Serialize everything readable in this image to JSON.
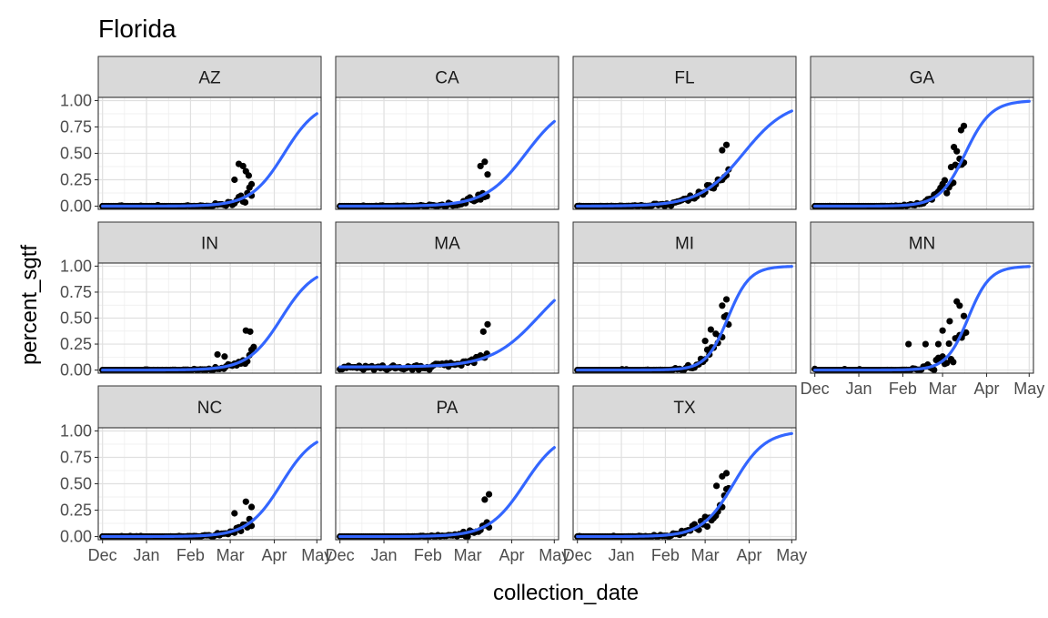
{
  "chart_data": {
    "type": "scatter",
    "title": "Florida",
    "xlabel": "collection_date",
    "ylabel": "percent_sgtf",
    "facet_var": "state",
    "ncol": 4,
    "x_ticks": [
      {
        "label": "Dec",
        "date": "2020-12-01"
      },
      {
        "label": "Jan",
        "date": "2021-01-01"
      },
      {
        "label": "Feb",
        "date": "2021-02-01"
      },
      {
        "label": "Mar",
        "date": "2021-03-01"
      },
      {
        "label": "Apr",
        "date": "2021-04-01"
      },
      {
        "label": "May",
        "date": "2021-05-01"
      }
    ],
    "xlim": [
      "2020-11-28",
      "2021-05-04"
    ],
    "ylim": [
      -0.03,
      1.03
    ],
    "y_ticks": [
      0,
      0.25,
      0.5,
      0.75,
      1
    ],
    "y_tick_labels": [
      "0.00",
      "0.25",
      "0.50",
      "0.75",
      "1.00"
    ],
    "grid": true,
    "point_color": "#000000",
    "fit_color": "#3366FF",
    "strip_fill": "#D9D9D9",
    "panels": [
      {
        "label": "AZ",
        "fit": {
          "midpoint": "2021-04-08",
          "rate": 0.085,
          "floor": 0
        },
        "points": {
          "start": "2020-12-01",
          "end": "2021-03-16",
          "seed": 1,
          "noise": 0.12,
          "extras": [
            [
              "2021-03-07",
              0.4
            ],
            [
              "2021-03-10",
              0.38
            ],
            [
              "2021-03-12",
              0.33
            ],
            [
              "2021-03-14",
              0.29
            ],
            [
              "2021-03-04",
              0.25
            ],
            [
              "2021-03-16",
              0.1
            ]
          ]
        }
      },
      {
        "label": "CA",
        "fit": {
          "midpoint": "2021-04-11",
          "rate": 0.07,
          "floor": 0
        },
        "points": {
          "start": "2020-12-01",
          "end": "2021-03-15",
          "seed": 2,
          "noise": 0.06,
          "extras": [
            [
              "2021-03-13",
              0.42
            ],
            [
              "2021-03-10",
              0.38
            ],
            [
              "2021-03-15",
              0.3
            ]
          ]
        }
      },
      {
        "label": "FL",
        "fit": {
          "midpoint": "2021-03-28",
          "rate": 0.065,
          "floor": 0
        },
        "points": {
          "start": "2020-12-01",
          "end": "2021-03-18",
          "seed": 3,
          "noise": 0.04,
          "extras": [
            [
              "2021-03-16",
              0.58
            ],
            [
              "2021-03-13",
              0.53
            ]
          ]
        }
      },
      {
        "label": "GA",
        "fit": {
          "midpoint": "2021-03-17",
          "rate": 0.11,
          "floor": 0
        },
        "points": {
          "start": "2020-12-01",
          "end": "2021-03-16",
          "seed": 4,
          "noise": 0.08,
          "extras": [
            [
              "2021-03-16",
              0.76
            ],
            [
              "2021-03-14",
              0.72
            ],
            [
              "2021-03-09",
              0.56
            ],
            [
              "2021-03-11",
              0.52
            ],
            [
              "2021-03-07",
              0.37
            ]
          ]
        }
      },
      {
        "label": "IN",
        "fit": {
          "midpoint": "2021-04-06",
          "rate": 0.085,
          "floor": 0
        },
        "points": {
          "start": "2020-12-01",
          "end": "2021-03-18",
          "seed": 5,
          "noise": 0.07,
          "extras": [
            [
              "2021-03-12",
              0.38
            ],
            [
              "2021-03-15",
              0.37
            ],
            [
              "2021-02-20",
              0.15
            ],
            [
              "2021-02-25",
              0.13
            ]
          ]
        }
      },
      {
        "label": "MA",
        "fit": {
          "midpoint": "2021-04-20",
          "rate": 0.06,
          "floor": 0.03
        },
        "points": {
          "start": "2020-12-01",
          "end": "2021-03-15",
          "seed": 6,
          "noise": 0.05,
          "extras": [
            [
              "2021-03-15",
              0.44
            ],
            [
              "2021-03-12",
              0.37
            ]
          ]
        }
      },
      {
        "label": "MI",
        "fit": {
          "midpoint": "2021-03-17",
          "rate": 0.13,
          "floor": 0
        },
        "points": {
          "start": "2020-12-01",
          "end": "2021-03-18",
          "seed": 7,
          "noise": 0.1,
          "extras": [
            [
              "2021-03-16",
              0.68
            ],
            [
              "2021-03-13",
              0.62
            ],
            [
              "2021-03-05",
              0.39
            ],
            [
              "2021-03-01",
              0.28
            ]
          ]
        }
      },
      {
        "label": "MN",
        "fit": {
          "midpoint": "2021-03-19",
          "rate": 0.13,
          "floor": 0
        },
        "points": {
          "start": "2020-12-01",
          "end": "2021-03-18",
          "seed": 8,
          "noise": 0.13,
          "extras": [
            [
              "2021-02-05",
              0.25
            ],
            [
              "2021-02-17",
              0.25
            ],
            [
              "2021-02-26",
              0.25
            ],
            [
              "2021-03-11",
              0.66
            ],
            [
              "2021-03-13",
              0.62
            ],
            [
              "2021-03-16",
              0.52
            ],
            [
              "2021-03-06",
              0.47
            ],
            [
              "2021-03-01",
              0.38
            ]
          ]
        }
      },
      {
        "label": "NC",
        "fit": {
          "midpoint": "2021-04-06",
          "rate": 0.085,
          "floor": 0
        },
        "points": {
          "start": "2020-12-01",
          "end": "2021-03-17",
          "seed": 9,
          "noise": 0.06,
          "extras": [
            [
              "2021-03-12",
              0.33
            ],
            [
              "2021-03-16",
              0.28
            ],
            [
              "2021-03-04",
              0.22
            ]
          ]
        }
      },
      {
        "label": "PA",
        "fit": {
          "midpoint": "2021-04-10",
          "rate": 0.08,
          "floor": 0
        },
        "points": {
          "start": "2020-12-01",
          "end": "2021-03-17",
          "seed": 10,
          "noise": 0.05,
          "extras": [
            [
              "2021-03-16",
              0.4
            ],
            [
              "2021-03-13",
              0.35
            ]
          ]
        }
      },
      {
        "label": "TX",
        "fit": {
          "midpoint": "2021-03-21",
          "rate": 0.09,
          "floor": 0
        },
        "points": {
          "start": "2020-12-01",
          "end": "2021-03-18",
          "seed": 11,
          "noise": 0.07,
          "extras": [
            [
              "2021-03-16",
              0.6
            ],
            [
              "2021-03-13",
              0.57
            ],
            [
              "2021-03-09",
              0.48
            ]
          ]
        }
      }
    ]
  }
}
